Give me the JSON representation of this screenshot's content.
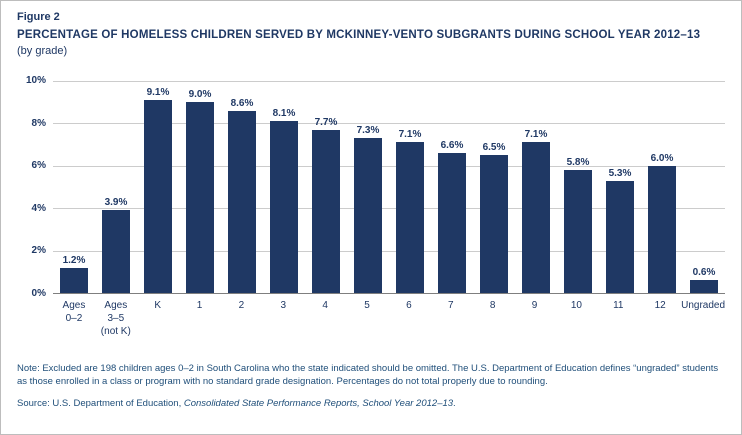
{
  "figure": {
    "label": "Figure 2",
    "title": "PERCENTAGE OF HOMELESS CHILDREN SERVED BY MCKINNEY-VENTO SUBGRANTS DURING SCHOOL YEAR 2012–13",
    "subtitle": "(by grade)"
  },
  "chart_data": {
    "type": "bar",
    "title": "Percentage of homeless children served by McKinney-Vento subgrants during school year 2012–13, by grade",
    "categories": [
      "Ages\n0–2",
      "Ages\n3–5\n(not K)",
      "K",
      "1",
      "2",
      "3",
      "4",
      "5",
      "6",
      "7",
      "8",
      "9",
      "10",
      "11",
      "12",
      "Ungraded"
    ],
    "values": [
      1.2,
      3.9,
      9.1,
      9.0,
      8.6,
      8.1,
      7.7,
      7.3,
      7.1,
      6.6,
      6.5,
      7.1,
      5.8,
      5.3,
      6.0,
      0.6
    ],
    "value_labels": [
      "1.2%",
      "3.9%",
      "9.1%",
      "9.0%",
      "8.6%",
      "8.1%",
      "7.7%",
      "7.3%",
      "7.1%",
      "6.6%",
      "6.5%",
      "7.1%",
      "5.8%",
      "5.3%",
      "6.0%",
      "0.6%"
    ],
    "xlabel": "",
    "ylabel": "",
    "ylim": [
      0,
      10
    ],
    "yticks": [
      0,
      2,
      4,
      6,
      8,
      10
    ],
    "ytick_labels": [
      "0%",
      "2%",
      "4%",
      "6%",
      "8%",
      "10%"
    ],
    "grid": true,
    "legend": "none",
    "bar_color": "#1F3864",
    "gridline_color": "#cccccc",
    "axis_color": "#7f7f7f",
    "label_color": "#1F3864"
  },
  "notes": {
    "note": "Note: Excluded are 198 children ages 0–2 in South Carolina who the state indicated should be omitted. The U.S. Department of Education defines “ungraded” students as those enrolled in a class or program with no standard grade designation. Percentages do not total properly due to rounding.",
    "source_prefix": "Source: U.S. Department of Education, ",
    "source_italic": "Consolidated State Performance Reports, School Year 2012–13",
    "source_suffix": "."
  }
}
